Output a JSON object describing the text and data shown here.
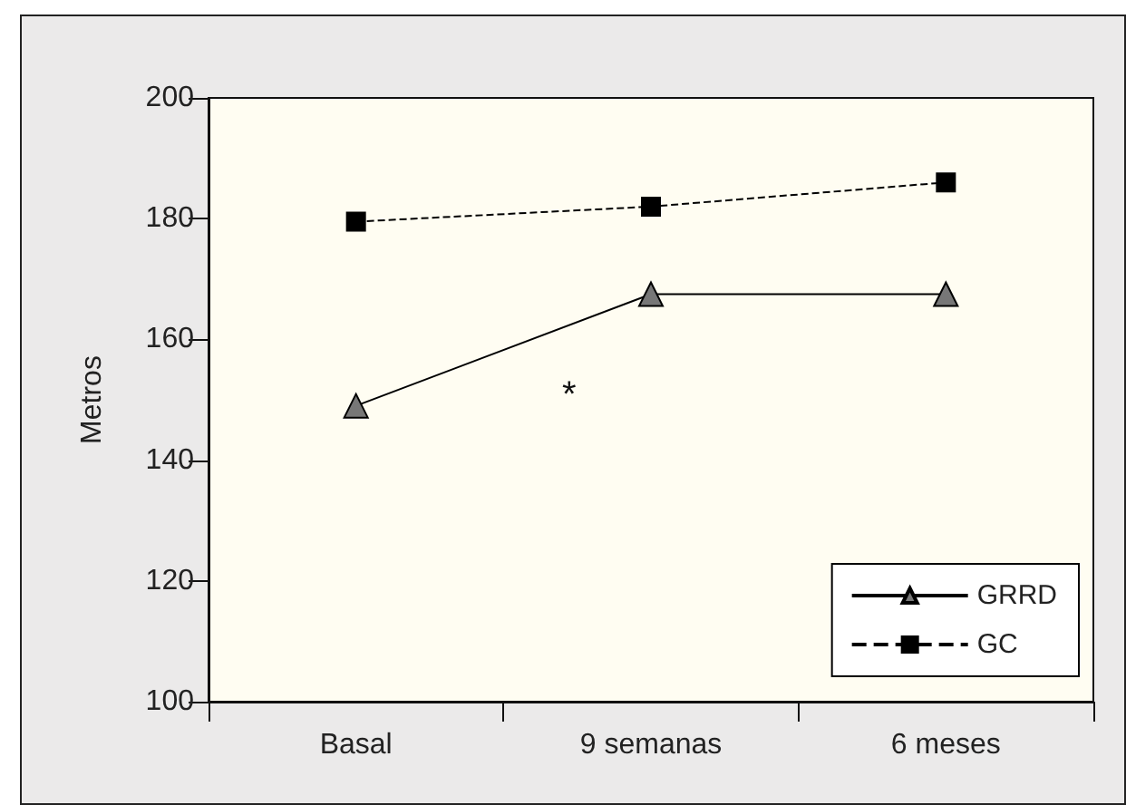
{
  "chart_data": {
    "type": "line",
    "ylabel": "Metros",
    "categories": [
      "Basal",
      "9 semanas",
      "6 meses"
    ],
    "series": [
      {
        "name": "GRRD",
        "color": "#000000",
        "values": [
          149,
          167.5,
          167.5
        ],
        "marker": "triangle",
        "line_style": "solid"
      },
      {
        "name": "GC",
        "color": "#000000",
        "values": [
          179.5,
          182,
          186
        ],
        "marker": "square",
        "line_style": "dashed"
      }
    ],
    "ylim": [
      100,
      200
    ],
    "yticks": [
      100,
      120,
      140,
      160,
      180,
      200
    ],
    "grid": false,
    "legend": "bottom right",
    "annotations": [
      "*"
    ]
  }
}
